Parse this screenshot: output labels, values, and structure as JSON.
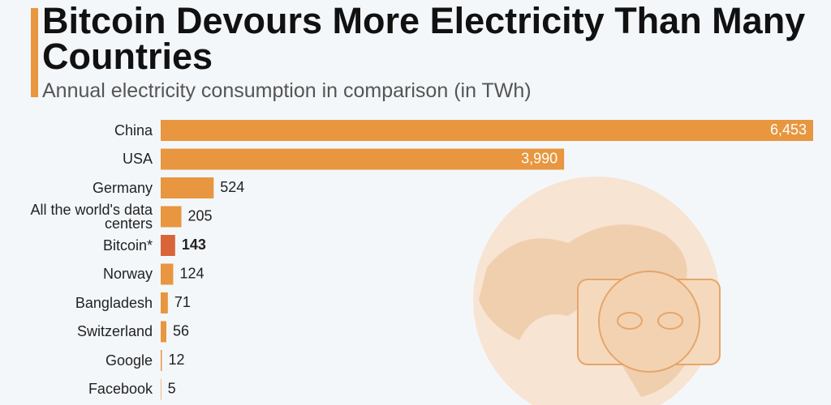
{
  "chart_data": {
    "type": "bar",
    "orientation": "horizontal",
    "title": "Bitcoin Devours More Electricity Than Many Countries",
    "subtitle": "Annual electricity consumption in comparison (in TWh)",
    "categories": [
      "China",
      "USA",
      "Germany",
      "All the world's data centers",
      "Bitcoin*",
      "Norway",
      "Bangladesh",
      "Switzerland",
      "Google",
      "Facebook"
    ],
    "values": [
      6453,
      3990,
      524,
      205,
      143,
      124,
      71,
      56,
      12,
      5
    ],
    "value_labels": [
      "6,453",
      "3,990",
      "524",
      "205",
      "143",
      "124",
      "71",
      "56",
      "12",
      "5"
    ],
    "colors": [
      "#e8963f",
      "#e8963f",
      "#e8963f",
      "#e8963f",
      "#d9643a",
      "#e8963f",
      "#e8963f",
      "#e8963f",
      "#e8963f",
      "#e8963f"
    ],
    "bold": [
      false,
      false,
      false,
      false,
      true,
      false,
      false,
      false,
      false,
      false
    ]
  }
}
